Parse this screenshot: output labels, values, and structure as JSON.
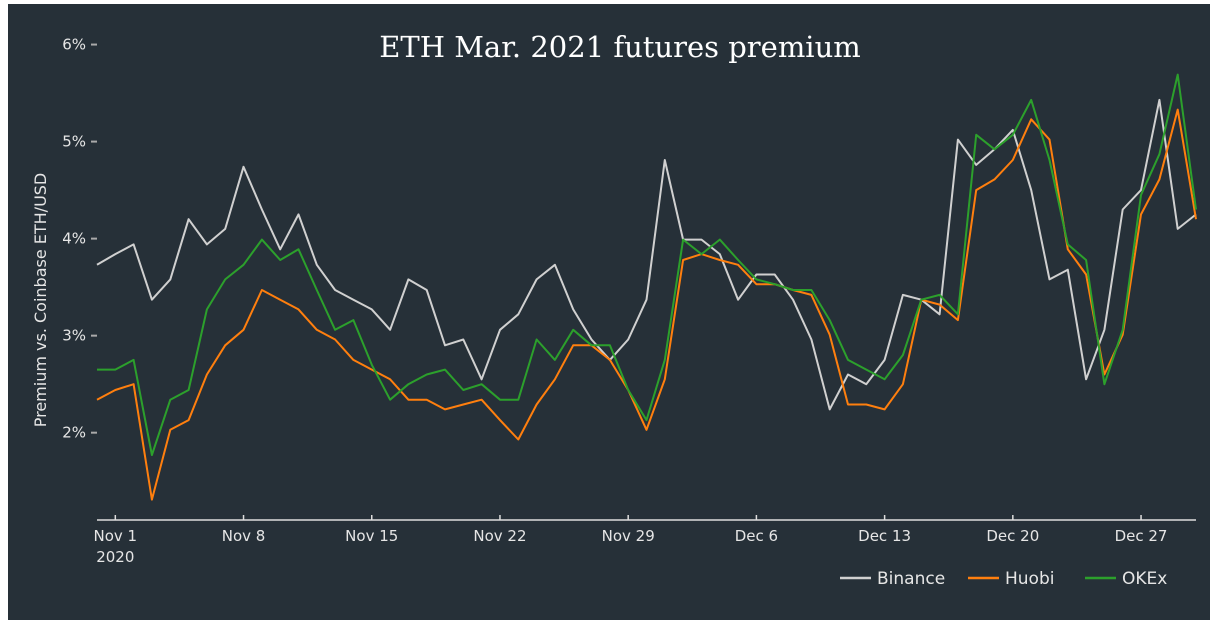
{
  "chart_data": {
    "type": "line",
    "title": "ETH Mar. 2021 futures premium",
    "xlabel": "",
    "ylabel": "Premium vs. Coinbase ETH/USD",
    "ylim": [
      1.1,
      6.15
    ],
    "xlim": [
      "2020-10-31",
      "2020-12-30"
    ],
    "y_ticks": [
      2,
      3,
      4,
      5,
      6
    ],
    "y_tick_labels": [
      "2%",
      "3%",
      "4%",
      "5%",
      "6%"
    ],
    "x_ticks": [
      "2020-11-01",
      "2020-11-08",
      "2020-11-15",
      "2020-11-22",
      "2020-11-29",
      "2020-12-06",
      "2020-12-13",
      "2020-12-20",
      "2020-12-27"
    ],
    "x_tick_labels": [
      "Nov 1",
      "Nov 8",
      "Nov 15",
      "Nov 22",
      "Nov 29",
      "Dec 6",
      "Dec 13",
      "Dec 20",
      "Dec 27"
    ],
    "x_year_label": "2020",
    "grid": false,
    "legend_position": "bottom-right",
    "background": "#263038",
    "x": [
      "2020-10-31",
      "2020-11-01",
      "2020-11-02",
      "2020-11-03",
      "2020-11-04",
      "2020-11-05",
      "2020-11-06",
      "2020-11-07",
      "2020-11-08",
      "2020-11-09",
      "2020-11-10",
      "2020-11-11",
      "2020-11-12",
      "2020-11-13",
      "2020-11-14",
      "2020-11-15",
      "2020-11-16",
      "2020-11-17",
      "2020-11-18",
      "2020-11-19",
      "2020-11-20",
      "2020-11-21",
      "2020-11-22",
      "2020-11-23",
      "2020-11-24",
      "2020-11-25",
      "2020-11-26",
      "2020-11-27",
      "2020-11-28",
      "2020-11-29",
      "2020-11-30",
      "2020-12-01",
      "2020-12-02",
      "2020-12-03",
      "2020-12-04",
      "2020-12-05",
      "2020-12-06",
      "2020-12-07",
      "2020-12-08",
      "2020-12-09",
      "2020-12-10",
      "2020-12-11",
      "2020-12-12",
      "2020-12-13",
      "2020-12-14",
      "2020-12-15",
      "2020-12-16",
      "2020-12-17",
      "2020-12-18",
      "2020-12-19",
      "2020-12-20",
      "2020-12-21",
      "2020-12-22",
      "2020-12-23",
      "2020-12-24",
      "2020-12-25",
      "2020-12-26",
      "2020-12-27",
      "2020-12-28",
      "2020-12-29",
      "2020-12-30"
    ],
    "series": [
      {
        "name": "Binance",
        "color": "#d0d0d0",
        "values": [
          3.73,
          3.84,
          3.94,
          3.37,
          3.58,
          4.2,
          3.94,
          4.1,
          4.74,
          4.3,
          3.89,
          4.25,
          3.73,
          3.47,
          3.37,
          3.27,
          3.06,
          3.58,
          3.47,
          2.9,
          2.96,
          2.55,
          3.06,
          3.22,
          3.58,
          3.73,
          3.27,
          2.96,
          2.75,
          2.96,
          3.37,
          4.81,
          3.99,
          3.99,
          3.84,
          3.37,
          3.63,
          3.63,
          3.37,
          2.96,
          2.24,
          2.6,
          2.5,
          2.75,
          3.42,
          3.37,
          3.22,
          5.02,
          4.76,
          4.92,
          5.12,
          4.5,
          3.58,
          3.68,
          2.55,
          3.06,
          4.3,
          4.5,
          5.43,
          4.1,
          4.25
        ]
      },
      {
        "name": "Huobi",
        "color": "#ff7f0e",
        "values": [
          2.34,
          2.44,
          2.5,
          1.31,
          2.03,
          2.13,
          2.6,
          2.9,
          3.06,
          3.47,
          3.37,
          3.27,
          3.06,
          2.96,
          2.75,
          2.65,
          2.55,
          2.34,
          2.34,
          2.24,
          2.29,
          2.34,
          2.13,
          1.93,
          2.29,
          2.55,
          2.9,
          2.9,
          2.75,
          2.44,
          2.03,
          2.55,
          3.78,
          3.84,
          3.78,
          3.73,
          3.53,
          3.53,
          3.47,
          3.42,
          3.01,
          2.29,
          2.29,
          2.24,
          2.5,
          3.37,
          3.32,
          3.16,
          4.5,
          4.61,
          4.81,
          5.23,
          5.02,
          3.89,
          3.63,
          2.6,
          3.01,
          4.25,
          4.61,
          5.33,
          4.2
        ]
      },
      {
        "name": "OKEx",
        "color": "#2ca02c",
        "values": [
          2.65,
          2.65,
          2.75,
          1.77,
          2.34,
          2.44,
          3.27,
          3.58,
          3.73,
          3.99,
          3.78,
          3.89,
          3.47,
          3.06,
          3.16,
          2.7,
          2.34,
          2.5,
          2.6,
          2.65,
          2.44,
          2.5,
          2.34,
          2.34,
          2.96,
          2.75,
          3.06,
          2.9,
          2.9,
          2.44,
          2.13,
          2.75,
          3.99,
          3.84,
          3.99,
          3.78,
          3.58,
          3.53,
          3.47,
          3.47,
          3.16,
          2.75,
          2.65,
          2.55,
          2.8,
          3.37,
          3.42,
          3.22,
          5.07,
          4.92,
          5.07,
          5.43,
          4.81,
          3.94,
          3.78,
          2.5,
          3.06,
          4.45,
          4.87,
          5.69,
          4.3
        ]
      }
    ]
  }
}
